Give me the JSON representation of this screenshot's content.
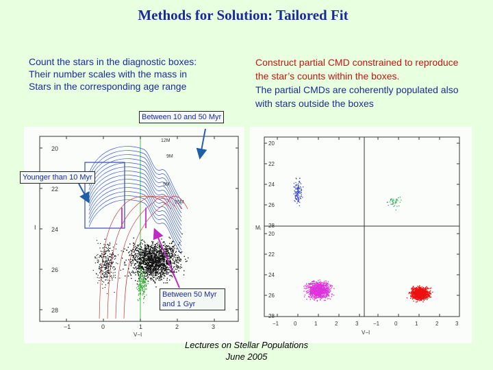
{
  "title": "Methods  for Solution: Tailored Fit",
  "left_text": [
    "Count the stars in the diagnostic boxes:",
    "Their number scales with the mass in",
    "Stars in the corresponding age range"
  ],
  "right_text_red": [
    "Construct partial CMD constrained to reproduce",
    "the star’s counts within the boxes."
  ],
  "right_text_blue": [
    "The partial CMDs are coherently populated also",
    "with stars outside the boxes"
  ],
  "callouts": {
    "c10_50": "Between 10 and 50 Myr",
    "young": "Younger than 10 Myr",
    "c50_1": [
      "Between 50 Myr",
      "and 1 Gyr"
    ]
  },
  "footer": [
    "Lectures on Stellar Populations",
    "June 2005"
  ],
  "left_plot": {
    "y_ticks": [
      "20",
      "22",
      "24",
      "26",
      "28"
    ],
    "x_ticks": [
      "−1",
      "0",
      "1",
      "2",
      "3"
    ],
    "ylabel": "I",
    "xlabel": "V−I",
    "iso_labels": [
      "12M",
      "9M",
      "5M",
      "15M"
    ]
  },
  "right_plot": {
    "y_ticks_top": [
      "20",
      "22",
      "24",
      "26",
      "28"
    ],
    "y_ticks_bottom": [
      "20",
      "22",
      "24",
      "26",
      "28"
    ],
    "x_ticks": [
      "−1",
      "0",
      "1",
      "2",
      "3",
      "−1",
      "0",
      "1",
      "2",
      "3"
    ],
    "ylabel": "Mᵢ",
    "xlabel": "V−I"
  },
  "colors": {
    "bg": "#e8ffe0",
    "title": "#1a2a99",
    "red_text": "#cc1111",
    "panel": "#fbfdfb"
  }
}
